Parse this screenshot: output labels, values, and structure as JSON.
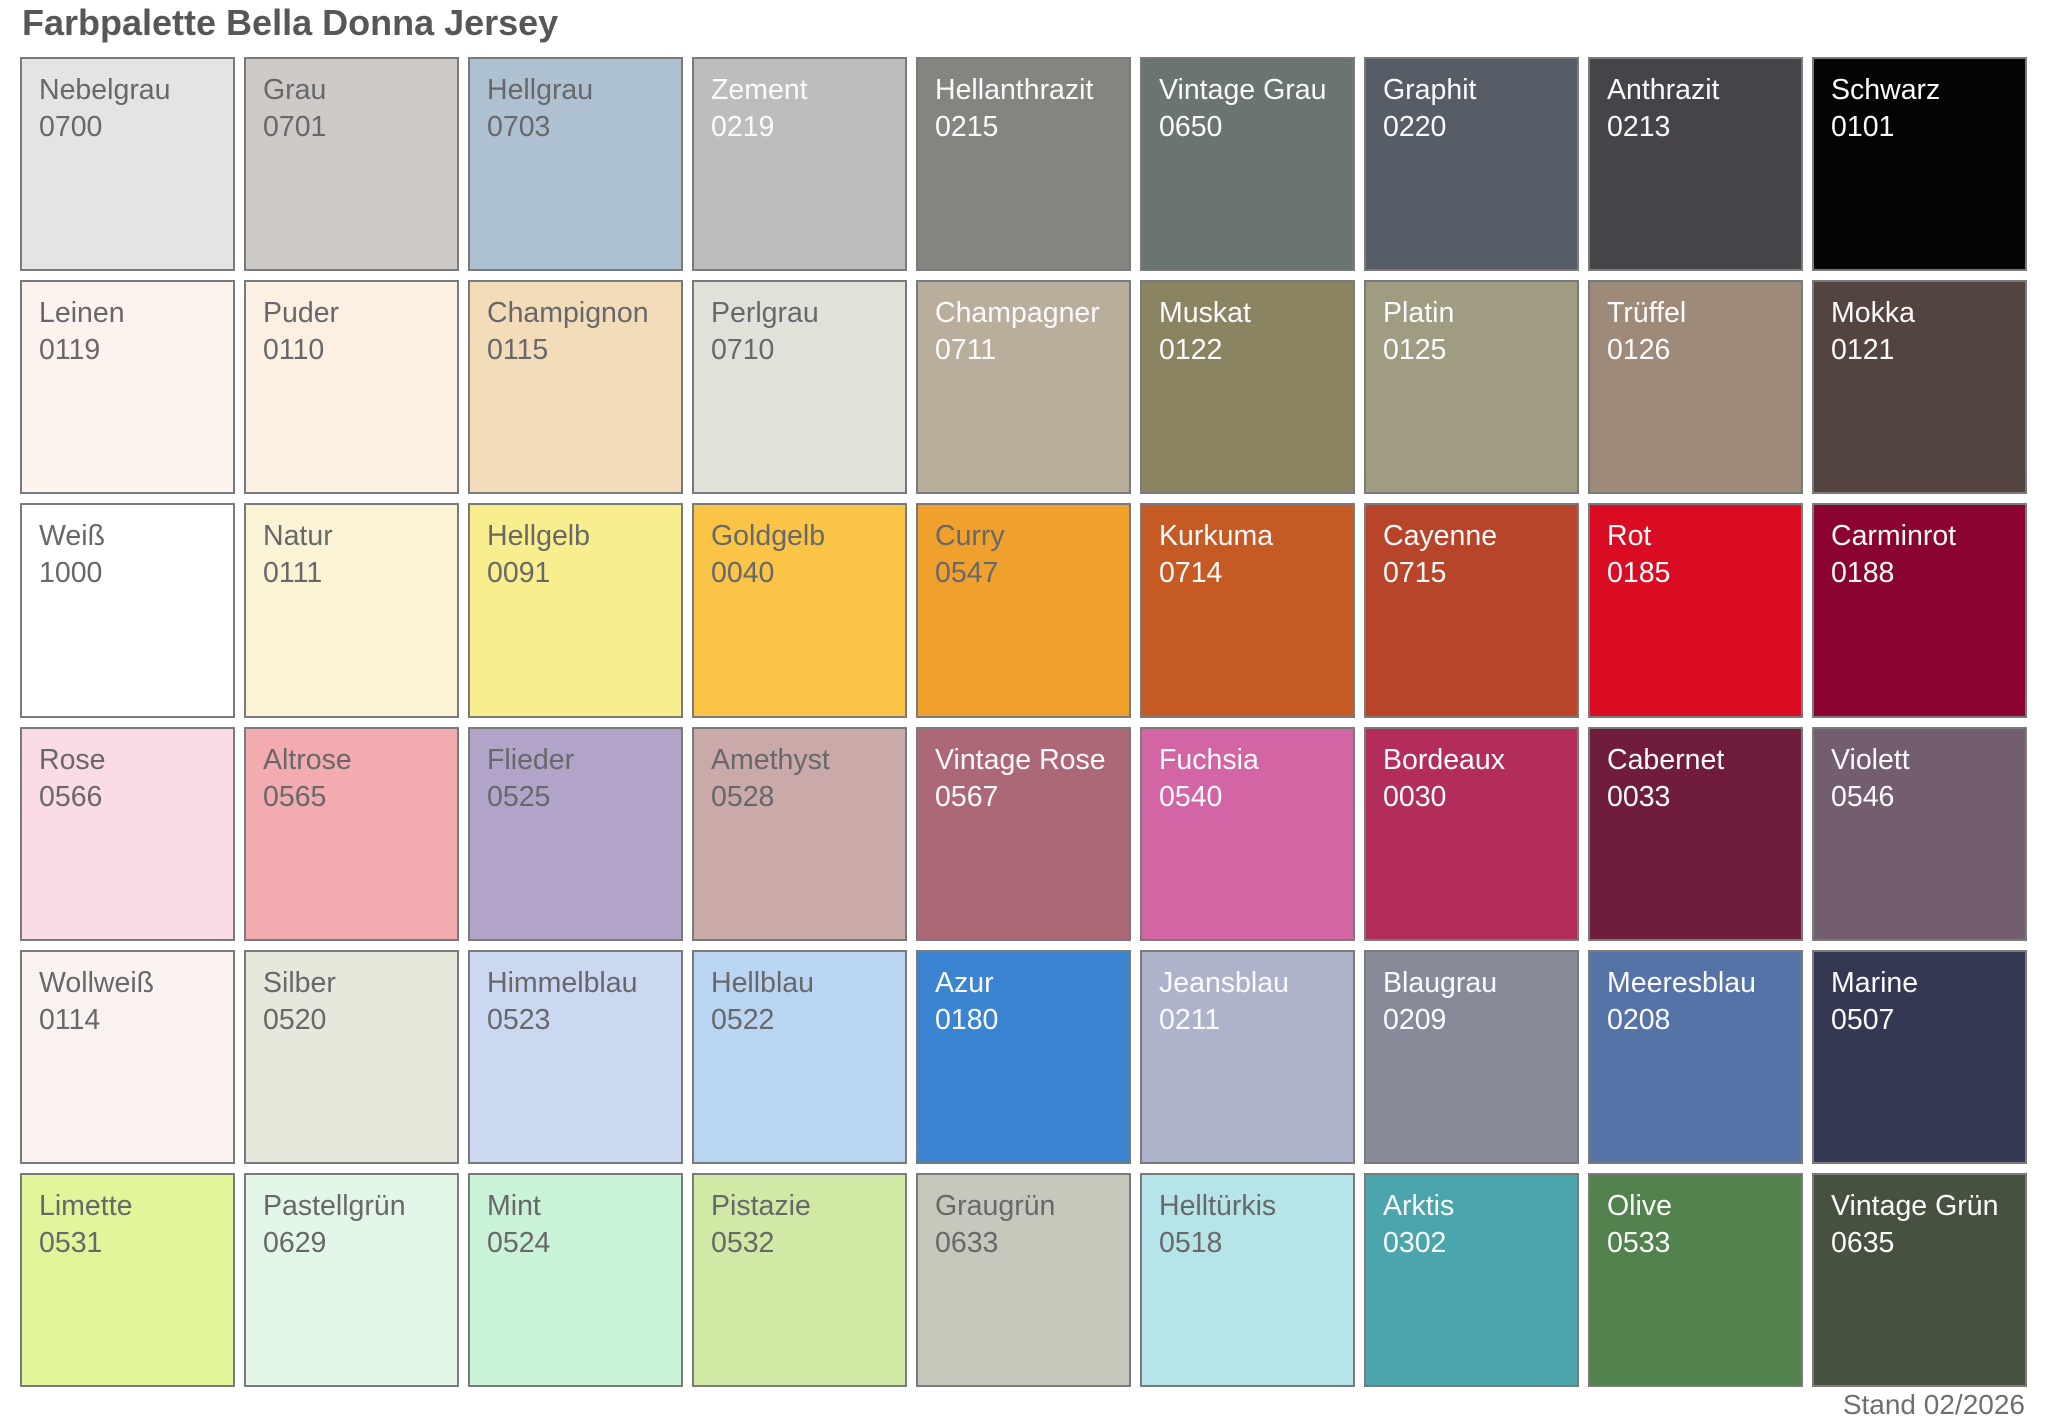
{
  "page": {
    "title": "Farbpalette Bella Donna Jersey",
    "footer": "Stand 02/2026"
  },
  "chart_data": {
    "type": "table",
    "title": "Farbpalette Bella Donna Jersey",
    "note": "Stand 02/2026",
    "rows": 6,
    "columns": 9,
    "swatches": [
      {
        "name": "Nebelgrau",
        "code": "0700",
        "hex": "#e4e4e2",
        "label": "dark"
      },
      {
        "name": "Grau",
        "code": "0701",
        "hex": "#cdcac8",
        "label": "dark"
      },
      {
        "name": "Hellgrau",
        "code": "0703",
        "hex": "#aec1d0",
        "label": "dark"
      },
      {
        "name": "Zement",
        "code": "0219",
        "hex": "#bbbebb",
        "label": "light"
      },
      {
        "name": "Hellanthrazit",
        "code": "0215",
        "hex": "#848480",
        "label": "light"
      },
      {
        "name": "Vintage Grau",
        "code": "0650",
        "hex": "#697473",
        "label": "light"
      },
      {
        "name": "Graphit",
        "code": "0220",
        "hex": "#565d66",
        "label": "light"
      },
      {
        "name": "Anthrazit",
        "code": "0213",
        "hex": "#474449",
        "label": "light"
      },
      {
        "name": "Schwarz",
        "code": "0101",
        "hex": "#040404",
        "label": "light"
      },
      {
        "name": "Leinen",
        "code": "0119",
        "hex": "#fcf2ee",
        "label": "dark"
      },
      {
        "name": "Puder",
        "code": "0110",
        "hex": "#fbf0e2",
        "label": "dark"
      },
      {
        "name": "Champignon",
        "code": "0115",
        "hex": "#f2dcba",
        "label": "dark"
      },
      {
        "name": "Perlgrau",
        "code": "0710",
        "hex": "#e2e1d9",
        "label": "dark"
      },
      {
        "name": "Champagner",
        "code": "0711",
        "hex": "#b9ae9c",
        "label": "light"
      },
      {
        "name": "Muskat",
        "code": "0122",
        "hex": "#8a8463",
        "label": "light"
      },
      {
        "name": "Platin",
        "code": "0125",
        "hex": "#9f9c82",
        "label": "light"
      },
      {
        "name": "Trüffel",
        "code": "0126",
        "hex": "#9d8a78",
        "label": "light"
      },
      {
        "name": "Mokka",
        "code": "0121",
        "hex": "#544440",
        "label": "light"
      },
      {
        "name": "Weiß",
        "code": "1000",
        "hex": "#ffffff",
        "label": "dark"
      },
      {
        "name": "Natur",
        "code": "0111",
        "hex": "#faf3d6",
        "label": "dark"
      },
      {
        "name": "Hellgelb",
        "code": "0091",
        "hex": "#f9ee8d",
        "label": "dark"
      },
      {
        "name": "Goldgelb",
        "code": "0040",
        "hex": "#fac447",
        "label": "dark"
      },
      {
        "name": "Curry",
        "code": "0547",
        "hex": "#f0a12d",
        "label": "dark"
      },
      {
        "name": "Kurkuma",
        "code": "0714",
        "hex": "#c55a24",
        "label": "light"
      },
      {
        "name": "Cayenne",
        "code": "0715",
        "hex": "#b8442a",
        "label": "light"
      },
      {
        "name": "Rot",
        "code": "0185",
        "hex": "#da0c23",
        "label": "light"
      },
      {
        "name": "Carminrot",
        "code": "0188",
        "hex": "#8b0430",
        "label": "light"
      },
      {
        "name": "Rose",
        "code": "0566",
        "hex": "#fbdce5",
        "label": "dark"
      },
      {
        "name": "Altrose",
        "code": "0565",
        "hex": "#f2abae",
        "label": "dark"
      },
      {
        "name": "Flieder",
        "code": "0525",
        "hex": "#b2a4c8",
        "label": "dark"
      },
      {
        "name": "Amethyst",
        "code": "0528",
        "hex": "#c9aaa9",
        "label": "dark"
      },
      {
        "name": "Vintage Rose",
        "code": "0567",
        "hex": "#ad6878",
        "label": "light"
      },
      {
        "name": "Fuchsia",
        "code": "0540",
        "hex": "#d365a4",
        "label": "light"
      },
      {
        "name": "Bordeaux",
        "code": "0030",
        "hex": "#b32d5c",
        "label": "light"
      },
      {
        "name": "Cabernet",
        "code": "0033",
        "hex": "#701c3c",
        "label": "light"
      },
      {
        "name": "Violett",
        "code": "0546",
        "hex": "#735e70",
        "label": "light"
      },
      {
        "name": "Wollweiß",
        "code": "0114",
        "hex": "#faf2f1",
        "label": "dark"
      },
      {
        "name": "Silber",
        "code": "0520",
        "hex": "#e8e7db",
        "label": "dark"
      },
      {
        "name": "Himmelblau",
        "code": "0523",
        "hex": "#cad8f1",
        "label": "dark"
      },
      {
        "name": "Hellblau",
        "code": "0522",
        "hex": "#b9d5f1",
        "label": "dark"
      },
      {
        "name": "Azur",
        "code": "0180",
        "hex": "#3a84d2",
        "label": "light"
      },
      {
        "name": "Jeansblau",
        "code": "0211",
        "hex": "#aeb3cc",
        "label": "light"
      },
      {
        "name": "Blaugrau",
        "code": "0209",
        "hex": "#878b99",
        "label": "light"
      },
      {
        "name": "Meeresblau",
        "code": "0208",
        "hex": "#5573a6",
        "label": "light"
      },
      {
        "name": "Marine",
        "code": "0507",
        "hex": "#343852",
        "label": "light"
      },
      {
        "name": "Limette",
        "code": "0531",
        "hex": "#e1f59b",
        "label": "dark"
      },
      {
        "name": "Pastellgrün",
        "code": "0629",
        "hex": "#e3f7e9",
        "label": "dark"
      },
      {
        "name": "Mint",
        "code": "0524",
        "hex": "#c9f2d6",
        "label": "dark"
      },
      {
        "name": "Pistazie",
        "code": "0532",
        "hex": "#d0e9a4",
        "label": "dark"
      },
      {
        "name": "Graugrün",
        "code": "0633",
        "hex": "#c4c9bb",
        "label": "dark"
      },
      {
        "name": "Helltürkis",
        "code": "0518",
        "hex": "#b5e4e9",
        "label": "dark"
      },
      {
        "name": "Arktis",
        "code": "0302",
        "hex": "#4ba5ad",
        "label": "light"
      },
      {
        "name": "Olive",
        "code": "0533",
        "hex": "#52824d",
        "label": "light"
      },
      {
        "name": "Vintage Grün",
        "code": "0635",
        "hex": "#47513f",
        "label": "light"
      }
    ],
    "label_colors": {
      "dark": "#68686a",
      "light": "#fafafa"
    },
    "border_color": "#7a7a7a",
    "background": "#ffffff"
  }
}
